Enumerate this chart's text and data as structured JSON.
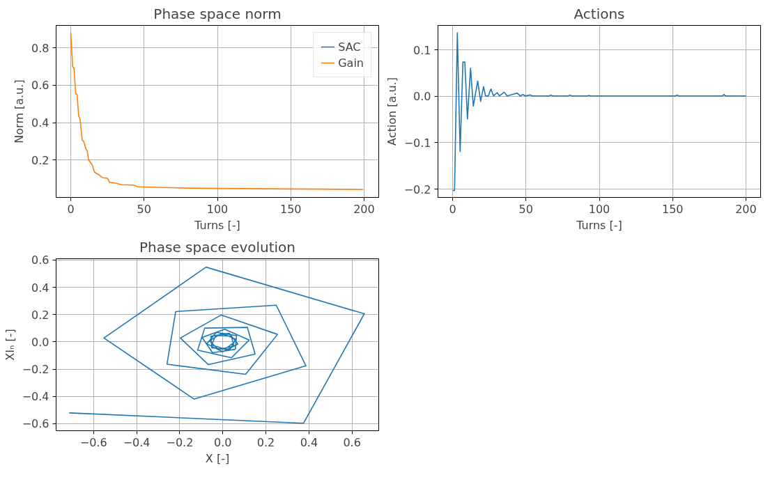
{
  "chart_data": [
    {
      "type": "line",
      "title": "Phase space norm",
      "xlabel": "Turns [-]",
      "ylabel": "Norm [a.u.]",
      "legend": "top right",
      "grid": true,
      "xlim": [
        -10,
        210
      ],
      "ylim": [
        0.0,
        0.92
      ],
      "xticks": [
        0,
        50,
        100,
        150,
        200
      ],
      "yticks": [
        0.2,
        0.4,
        0.6,
        0.8
      ],
      "x": [
        0,
        1.3,
        2.2,
        3.4,
        4.3,
        5.4,
        6.3,
        7.8,
        8.8,
        10.3,
        11.2,
        12.2,
        14.6,
        16.2,
        19.4,
        21.8,
        25,
        26.6,
        29.8,
        34.6,
        42.6,
        45.8,
        55.4,
        79,
        103,
        151,
        199.5
      ],
      "series": [
        {
          "name": "SAC",
          "color": "#1f77b4",
          "values": [
            null,
            null,
            null,
            null,
            null,
            null,
            null,
            null,
            null,
            null,
            null,
            null,
            null,
            null,
            null,
            null,
            null,
            null,
            null,
            null,
            null,
            null,
            null,
            null,
            null,
            null,
            null
          ]
        },
        {
          "name": "Gain",
          "color": "#ff7f0e",
          "values": [
            0.883,
            0.7,
            0.69,
            0.555,
            0.55,
            0.435,
            0.42,
            0.306,
            0.3,
            0.26,
            0.25,
            0.2,
            0.175,
            0.135,
            0.12,
            0.105,
            0.103,
            0.08,
            0.078,
            0.068,
            0.066,
            0.057,
            0.055,
            0.05,
            0.048,
            0.045,
            0.043
          ]
        }
      ]
    },
    {
      "type": "line",
      "title": "Actions",
      "xlabel": "Turns [-]",
      "ylabel": "Action [a.u.]",
      "grid": true,
      "xlim": [
        -10,
        210
      ],
      "ylim": [
        -0.218,
        0.153
      ],
      "xticks": [
        0,
        50,
        100,
        150,
        200
      ],
      "yticks": [
        {
          "value": -0.2,
          "label": "−0.2"
        },
        {
          "value": -0.1,
          "label": "−0.1"
        },
        {
          "value": 0,
          "label": "0.0"
        },
        {
          "value": 0.1,
          "label": "0.1"
        }
      ],
      "x": [
        0,
        1.3,
        3.2,
        5.1,
        7,
        8.3,
        10.1,
        12.2,
        14.1,
        17.1,
        19.1,
        21.1,
        22.4,
        24.3,
        26.1,
        27.9,
        30.3,
        31.9,
        35.2,
        37.1,
        44,
        46,
        48,
        49.6,
        52.8,
        54.4,
        66,
        67,
        68,
        79,
        80,
        81,
        92,
        93,
        94,
        152,
        153,
        154,
        184,
        185,
        186,
        200
      ],
      "series": [
        {
          "color": "#1f77b4",
          "values": [
            -0.203,
            -0.203,
            0.137,
            -0.119,
            0.074,
            0.074,
            -0.049,
            0.061,
            -0.021,
            0.033,
            -0.011,
            0.021,
            0.001,
            0.001,
            0.016,
            0.001,
            0.008,
            0.001,
            0.009,
            0.001,
            0.007,
            0.001,
            0.004,
            0.001,
            0.003,
            0.001,
            0.001,
            0.003,
            0.001,
            0.001,
            0.003,
            0.001,
            0.001,
            0.002,
            0.001,
            0.001,
            0.003,
            0.001,
            0.001,
            0.004,
            0.001,
            0.001
          ]
        }
      ]
    },
    {
      "type": "line",
      "title": "Phase space evolution",
      "xlabel": "X [-]",
      "ylabel": "XIₙ [-]",
      "grid": true,
      "xlim": [
        -0.774,
        0.724
      ],
      "ylim": [
        -0.652,
        0.61
      ],
      "xticks": [
        {
          "value": -0.6,
          "label": "−0.6"
        },
        {
          "value": -0.4,
          "label": "−0.4"
        },
        {
          "value": -0.2,
          "label": "−0.2"
        },
        {
          "value": 0,
          "label": "0.0"
        },
        {
          "value": 0.2,
          "label": "0.2"
        },
        {
          "value": 0.4,
          "label": "0.4"
        },
        {
          "value": 0.6,
          "label": "0.6"
        }
      ],
      "yticks": [
        {
          "value": -0.6,
          "label": "−0.6"
        },
        {
          "value": -0.4,
          "label": "−0.4"
        },
        {
          "value": -0.2,
          "label": "−0.2"
        },
        {
          "value": 0,
          "label": "0.0"
        },
        {
          "value": 0.2,
          "label": "0.2"
        },
        {
          "value": 0.4,
          "label": "0.4"
        },
        {
          "value": 0.6,
          "label": "0.6"
        }
      ],
      "x": [
        -0.713,
        0.375,
        0.657,
        -0.078,
        -0.552,
        -0.133,
        0.386,
        0.248,
        -0.219,
        -0.259,
        0.106,
        0.254,
        -0.008,
        -0.197,
        -0.067,
        0.15,
        0.114,
        -0.084,
        -0.117,
        0.04,
        0.122,
        0.009,
        -0.096,
        -0.048,
        0.058,
        0.064,
        -0.03,
        -0.074,
        -0.001,
        0.07,
        0.03,
        -0.055,
        -0.051,
        0.032,
        0.061,
        -0.005,
        -0.062,
        -0.02,
        0.051,
        0.04,
        -0.033,
        -0.052,
        0.011,
        0.054
      ],
      "series": [
        {
          "color": "#1f77b4",
          "values": [
            -0.521,
            -0.597,
            0.206,
            0.548,
            0.028,
            -0.42,
            -0.176,
            0.269,
            0.222,
            -0.164,
            -0.238,
            0.055,
            0.197,
            0.028,
            -0.167,
            -0.09,
            0.106,
            0.101,
            -0.061,
            -0.117,
            0.013,
            0.093,
            0.033,
            -0.08,
            -0.055,
            0.045,
            0.07,
            -0.014,
            -0.073,
            -0.016,
            0.063,
            0.042,
            -0.044,
            -0.058,
            0.019,
            0.063,
            0.008,
            -0.057,
            -0.03,
            0.042,
            0.047,
            -0.022,
            -0.054,
            -0.001
          ]
        }
      ]
    }
  ]
}
